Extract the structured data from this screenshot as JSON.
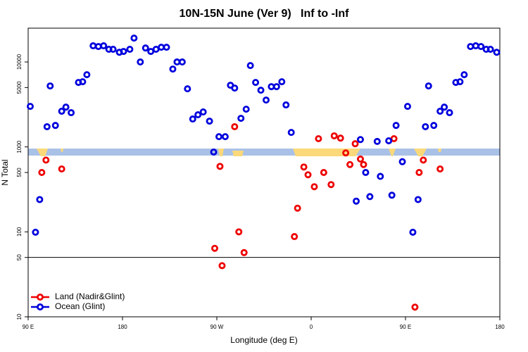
{
  "chart_data": {
    "type": "scatter",
    "title": "10N-15N June (Ver 9)   Inf to -Inf",
    "xlabel": "Longitude (deg E)",
    "ylabel": "N Total",
    "xlim": [
      90,
      540
    ],
    "ylim": [
      10,
      25000
    ],
    "yscale": "log",
    "xticks": [
      {
        "value": 90,
        "label": "90 E"
      },
      {
        "value": 180,
        "label": "180"
      },
      {
        "value": 270,
        "label": "90 W"
      },
      {
        "value": 360,
        "label": "0"
      },
      {
        "value": 450,
        "label": "90 E"
      },
      {
        "value": 540,
        "label": "180"
      }
    ],
    "yticks": [
      10,
      50,
      100,
      500,
      1000,
      5000,
      10000
    ],
    "hline": 50,
    "legend": "bottom-left",
    "series": [
      {
        "name": "Land (Nadir&Glint)",
        "color": "#ee0000",
        "x": [
          103,
          107,
          122,
          268,
          273,
          275,
          287,
          291,
          296,
          344,
          347,
          353,
          357,
          363,
          367,
          372,
          379,
          382,
          388,
          393,
          397,
          402,
          407,
          410,
          439,
          459,
          463,
          467,
          483
        ],
        "values": [
          500,
          700,
          550,
          64,
          590,
          40,
          1730,
          100,
          57,
          88,
          190,
          580,
          470,
          340,
          1250,
          500,
          360,
          1350,
          1270,
          850,
          620,
          1090,
          720,
          620,
          1250,
          13,
          500,
          700,
          550
        ]
      },
      {
        "name": "Ocean (Glint)",
        "color": "#0000dd",
        "x": [
          92,
          97,
          101,
          108,
          111,
          116,
          122,
          126,
          131,
          138,
          142,
          146,
          152,
          157,
          162,
          167,
          171,
          177,
          181,
          187,
          191,
          197,
          202,
          207,
          212,
          217,
          222,
          228,
          232,
          237,
          242,
          247,
          252,
          257,
          263,
          267,
          272,
          278,
          283,
          287,
          293,
          298,
          302,
          307,
          312,
          317,
          322,
          327,
          332,
          336,
          341,
          403,
          407,
          412,
          416,
          423,
          426,
          434,
          437,
          441,
          447,
          452,
          457,
          462,
          469,
          472,
          477,
          483,
          487,
          492,
          498,
          502,
          506,
          512,
          517,
          522,
          527,
          531,
          537
        ],
        "values": [
          3000,
          99,
          240,
          1730,
          5220,
          1790,
          2630,
          2940,
          2530,
          5740,
          5850,
          7080,
          15500,
          15200,
          15500,
          14100,
          14100,
          13000,
          13300,
          14100,
          19100,
          10000,
          14600,
          13300,
          14100,
          14900,
          14900,
          8250,
          10000,
          10000,
          4830,
          2130,
          2390,
          2580,
          2010,
          870,
          1320,
          1320,
          5320,
          4930,
          2170,
          2780,
          9070,
          5740,
          4650,
          3560,
          5120,
          5120,
          5850,
          3120,
          1480,
          230,
          1220,
          500,
          260,
          1160,
          450,
          1180,
          270,
          1790,
          670,
          3000,
          99,
          240,
          1730,
          5220,
          1790,
          2630,
          2940,
          2530,
          5740,
          5850,
          7080,
          15200,
          15500,
          15200,
          14100,
          14100,
          13000
        ]
      }
    ]
  }
}
